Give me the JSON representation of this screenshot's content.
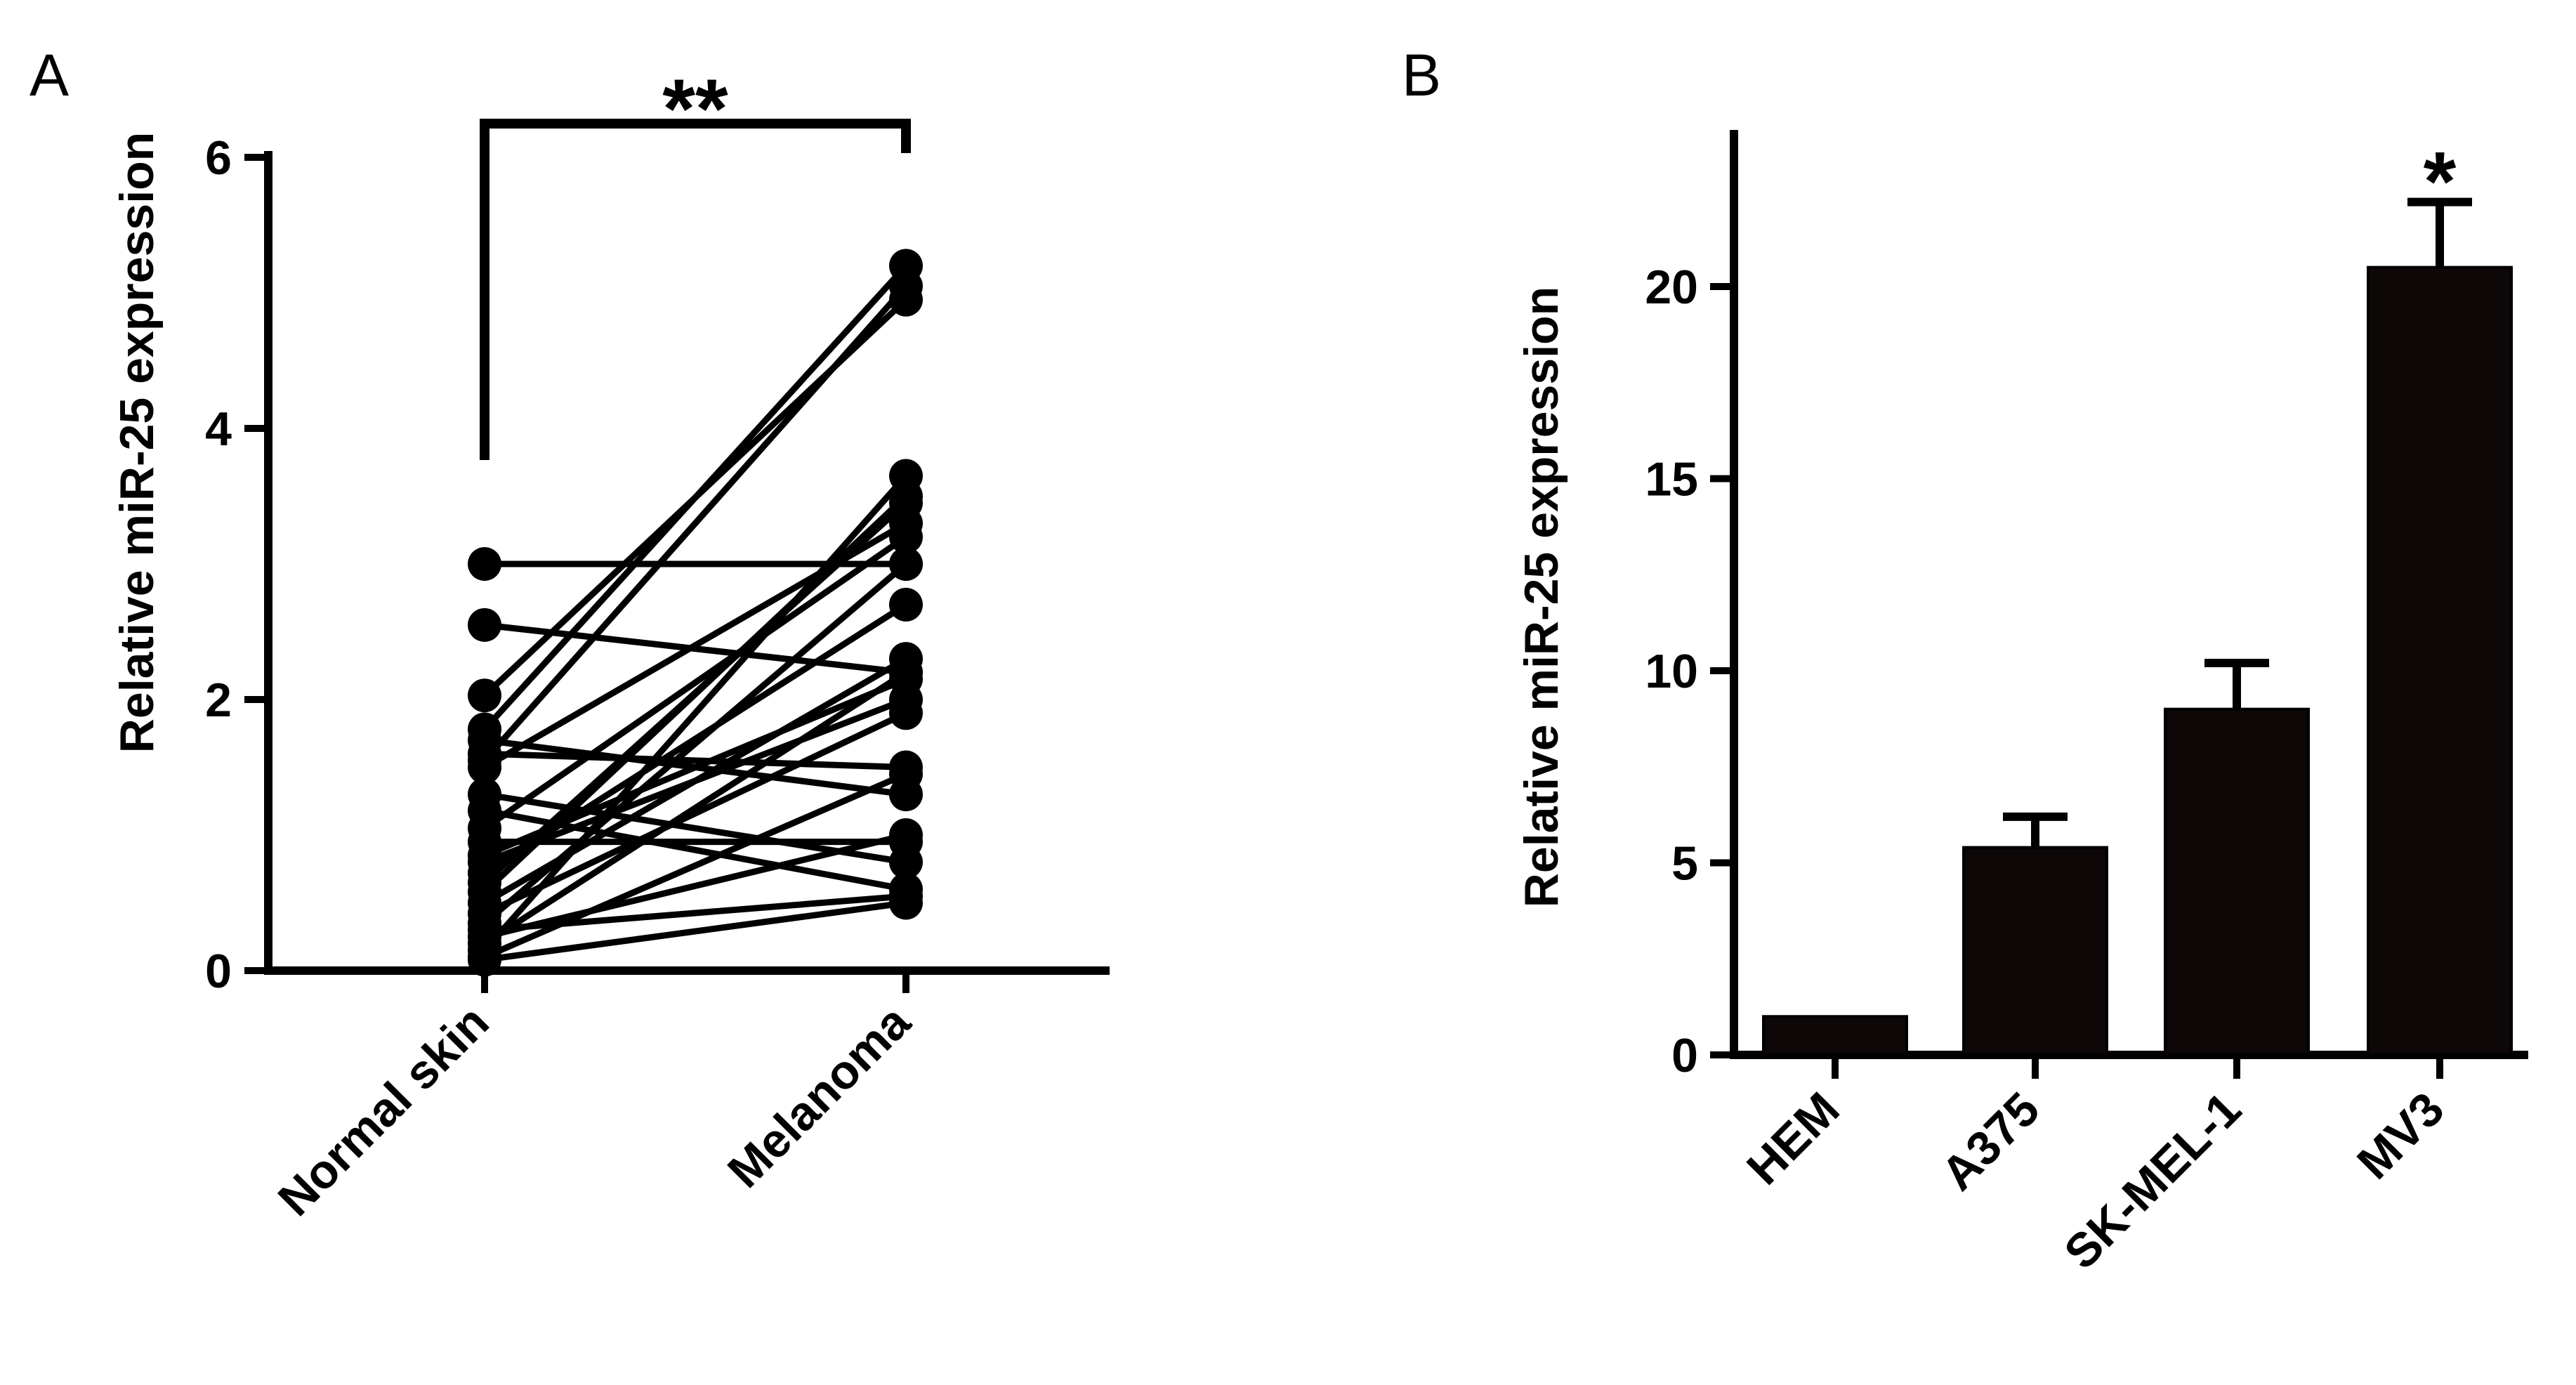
{
  "chart_data": [
    {
      "panel_label": "A",
      "type": "scatter",
      "subtype": "paired before-after (connected points)",
      "categories": [
        "Normal skin",
        "Melanoma"
      ],
      "ylabel": "Relative miR-25 expression",
      "xlabel": "",
      "ylim": [
        0,
        6
      ],
      "yticks": [
        "0",
        "2",
        "4",
        "6"
      ],
      "significance": "**",
      "pairs": [
        [
          3.0,
          3.0
        ],
        [
          2.55,
          2.2
        ],
        [
          2.03,
          4.95
        ],
        [
          1.78,
          5.2
        ],
        [
          1.7,
          1.3
        ],
        [
          1.6,
          1.5
        ],
        [
          1.55,
          5.05
        ],
        [
          1.5,
          3.3
        ],
        [
          1.3,
          0.8
        ],
        [
          1.18,
          0.6
        ],
        [
          1.05,
          3.2
        ],
        [
          0.95,
          0.95
        ],
        [
          0.85,
          2.15
        ],
        [
          0.8,
          2.0
        ],
        [
          0.72,
          2.7
        ],
        [
          0.65,
          3.45
        ],
        [
          0.58,
          3.5
        ],
        [
          0.5,
          2.3
        ],
        [
          0.42,
          1.9
        ],
        [
          0.35,
          3.0
        ],
        [
          0.3,
          0.55
        ],
        [
          0.25,
          1.0
        ],
        [
          0.2,
          2.2
        ],
        [
          0.15,
          3.65
        ],
        [
          0.1,
          1.45
        ],
        [
          0.08,
          0.5
        ]
      ]
    },
    {
      "panel_label": "B",
      "type": "bar",
      "categories": [
        "HEM",
        "A375",
        "SK-MEL-1",
        "MV3"
      ],
      "values": [
        1.0,
        5.4,
        9.0,
        20.5
      ],
      "errors": [
        0.0,
        0.8,
        1.2,
        1.7
      ],
      "ylabel": "Relative miR-25 expression",
      "xlabel": "",
      "ylim": [
        0,
        24
      ],
      "yticks": [
        "0",
        "5",
        "10",
        "15",
        "20"
      ],
      "annotations": [
        "",
        "",
        "",
        "*"
      ],
      "bar_color": "#0d0707"
    }
  ]
}
